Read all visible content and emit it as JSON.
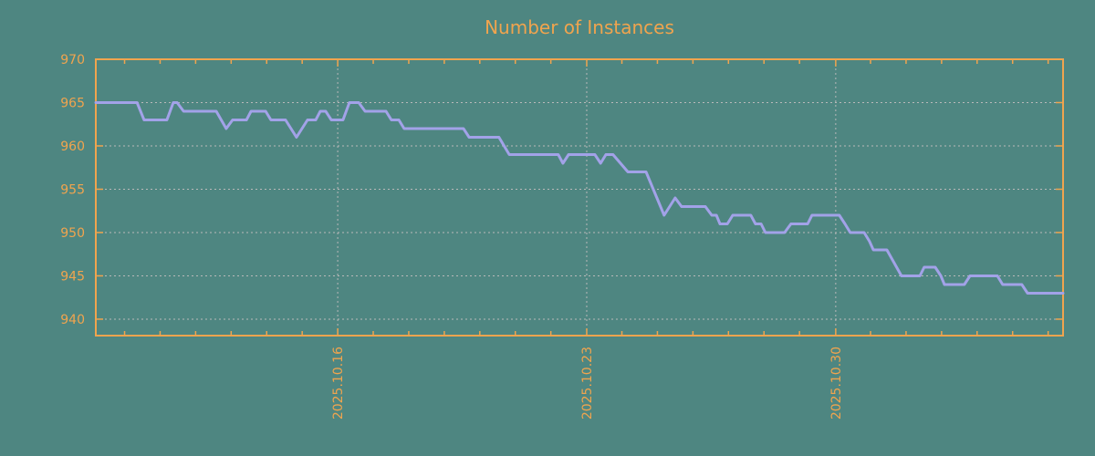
{
  "colors": {
    "background": "#4e8681",
    "axis_and_text": "#f0a44e",
    "grid": "#b9b9b9",
    "line": "#a2a2e8"
  },
  "chart_data": {
    "type": "line",
    "title": "Number of Instances",
    "xlabel": "",
    "ylabel": "",
    "legend": "none",
    "grid": true,
    "x_axis": {
      "window_days": 27.23,
      "major_ticks": [
        {
          "day": 6.81,
          "label": "2025.10.16"
        },
        {
          "day": 13.82,
          "label": "2025.10.23"
        },
        {
          "day": 20.83,
          "label": "2025.10.30"
        }
      ],
      "minor_tick_first_day": 0.81,
      "minor_tick_interval_days": 1
    },
    "y_axis": {
      "range": [
        938.1,
        970
      ],
      "ticks": [
        940,
        945,
        950,
        955,
        960,
        965,
        970
      ]
    },
    "series": [
      {
        "name": "instances",
        "color": "#a2a2e8",
        "points_day_value": [
          [
            0.0,
            965
          ],
          [
            1.16,
            965
          ],
          [
            1.36,
            963
          ],
          [
            2.0,
            963
          ],
          [
            2.18,
            965
          ],
          [
            2.29,
            965
          ],
          [
            2.47,
            964
          ],
          [
            3.39,
            964
          ],
          [
            3.67,
            962
          ],
          [
            3.85,
            963
          ],
          [
            4.24,
            963
          ],
          [
            4.37,
            964
          ],
          [
            4.78,
            964
          ],
          [
            4.93,
            963
          ],
          [
            5.34,
            963
          ],
          [
            5.65,
            961
          ],
          [
            5.96,
            963
          ],
          [
            6.19,
            963
          ],
          [
            6.32,
            964
          ],
          [
            6.47,
            964
          ],
          [
            6.63,
            963
          ],
          [
            6.96,
            963
          ],
          [
            7.14,
            965
          ],
          [
            7.4,
            965
          ],
          [
            7.58,
            964
          ],
          [
            8.17,
            964
          ],
          [
            8.32,
            963
          ],
          [
            8.53,
            963
          ],
          [
            8.68,
            962
          ],
          [
            10.35,
            962
          ],
          [
            10.51,
            961
          ],
          [
            11.35,
            961
          ],
          [
            11.64,
            959
          ],
          [
            13.02,
            959
          ],
          [
            13.15,
            958
          ],
          [
            13.31,
            959
          ],
          [
            14.05,
            959
          ],
          [
            14.21,
            958
          ],
          [
            14.36,
            959
          ],
          [
            14.56,
            959
          ],
          [
            14.98,
            957
          ],
          [
            15.49,
            957
          ],
          [
            16.0,
            952
          ],
          [
            16.31,
            954
          ],
          [
            16.49,
            953
          ],
          [
            17.16,
            953
          ],
          [
            17.34,
            952
          ],
          [
            17.47,
            952
          ],
          [
            17.57,
            951
          ],
          [
            17.78,
            951
          ],
          [
            17.93,
            952
          ],
          [
            18.44,
            952
          ],
          [
            18.57,
            951
          ],
          [
            18.73,
            951
          ],
          [
            18.85,
            950
          ],
          [
            19.39,
            950
          ],
          [
            19.57,
            951
          ],
          [
            20.04,
            951
          ],
          [
            20.16,
            952
          ],
          [
            20.93,
            952
          ],
          [
            21.09,
            951
          ],
          [
            21.24,
            950
          ],
          [
            21.63,
            950
          ],
          [
            21.78,
            949
          ],
          [
            21.89,
            948
          ],
          [
            22.27,
            948
          ],
          [
            22.68,
            945
          ],
          [
            23.2,
            945
          ],
          [
            23.32,
            946
          ],
          [
            23.63,
            946
          ],
          [
            23.79,
            945
          ],
          [
            23.89,
            944
          ],
          [
            24.45,
            944
          ],
          [
            24.61,
            945
          ],
          [
            25.38,
            945
          ],
          [
            25.53,
            944
          ],
          [
            26.07,
            944
          ],
          [
            26.23,
            943
          ],
          [
            27.23,
            943
          ]
        ]
      }
    ]
  }
}
